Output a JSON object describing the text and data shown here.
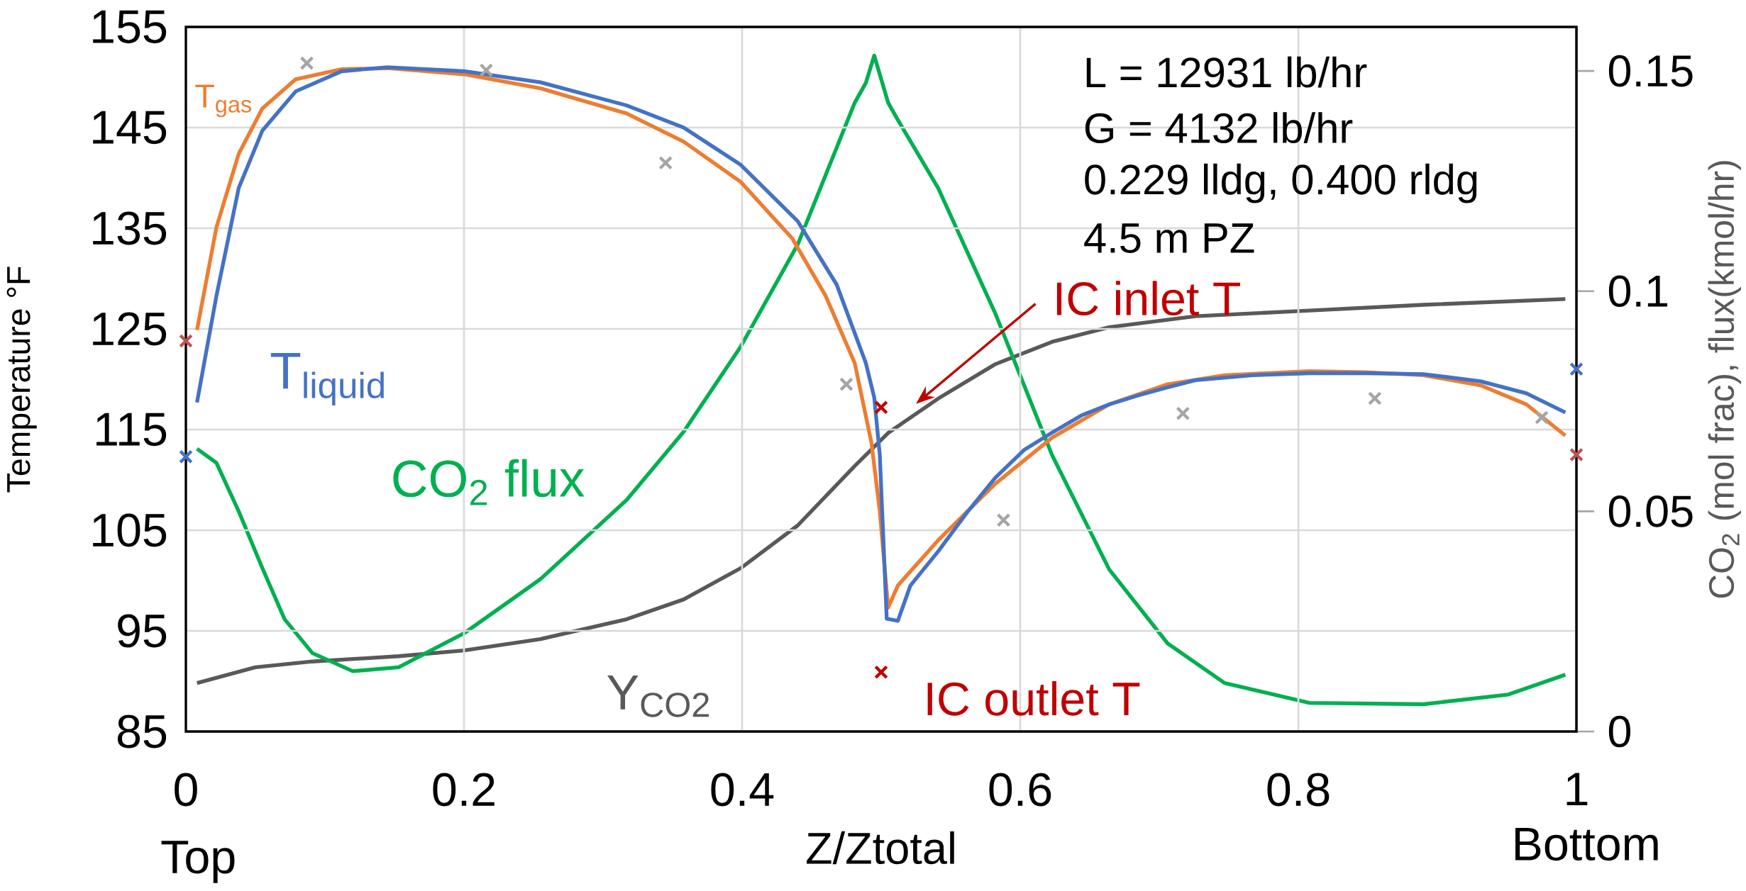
{
  "chart_data": {
    "type": "line",
    "xlabel": "Z/Ztotal",
    "ylabel": "Temperature °F",
    "y2label": "CO$_{2}$ (mol frac), flux(kmol/hr)",
    "xlim": [
      0,
      1
    ],
    "xticks": [
      0,
      0.2,
      0.4,
      0.6,
      0.8,
      1
    ],
    "ylim": [
      85,
      155
    ],
    "yticks": [
      85,
      95,
      105,
      115,
      125,
      135,
      145,
      155
    ],
    "y2lim": [
      0,
      0.16
    ],
    "y2ticks": [
      0,
      0.05,
      0.1,
      0.15
    ],
    "grid": true,
    "marker": "none",
    "series": [
      {
        "name": "T$_{gas}$",
        "color": "#ed7d31",
        "x": [
          0.008,
          0.022,
          0.038,
          0.055,
          0.079,
          0.112,
          0.145,
          0.2,
          0.255,
          0.317,
          0.358,
          0.399,
          0.436,
          0.46,
          0.481,
          0.493,
          0.499,
          0.505,
          0.512,
          0.541,
          0.582,
          0.623,
          0.664,
          0.706,
          0.747,
          0.808,
          0.849,
          0.89,
          0.931,
          0.964,
          0.992
        ],
        "values": [
          124.9,
          135.1,
          142.4,
          146.9,
          149.8,
          150.8,
          150.9,
          150.3,
          148.9,
          146.4,
          143.6,
          139.6,
          134.0,
          128.3,
          121.6,
          113.7,
          106.9,
          97.3,
          99.5,
          104.0,
          109.6,
          114.2,
          117.5,
          119.5,
          120.4,
          120.8,
          120.7,
          120.4,
          119.4,
          117.5,
          114.4
        ]
      },
      {
        "name": "T$_{liquid}$",
        "color": "#4472c4",
        "x": [
          0.008,
          0.022,
          0.038,
          0.055,
          0.079,
          0.112,
          0.145,
          0.2,
          0.255,
          0.317,
          0.358,
          0.399,
          0.44,
          0.468,
          0.489,
          0.495,
          0.499,
          0.504,
          0.512,
          0.521,
          0.541,
          0.562,
          0.582,
          0.603,
          0.623,
          0.644,
          0.664,
          0.685,
          0.706,
          0.726,
          0.767,
          0.808,
          0.849,
          0.89,
          0.931,
          0.964,
          0.992
        ],
        "values": [
          117.7,
          128.3,
          139.0,
          144.7,
          148.6,
          150.6,
          151.0,
          150.6,
          149.5,
          147.2,
          145.0,
          141.3,
          135.7,
          129.4,
          121.6,
          118.2,
          112.5,
          96.2,
          96.0,
          99.5,
          102.9,
          106.8,
          110.2,
          113.0,
          114.7,
          116.4,
          117.5,
          118.4,
          119.2,
          119.9,
          120.4,
          120.6,
          120.6,
          120.5,
          119.8,
          118.6,
          116.7
        ]
      },
      {
        "name": "Y$_{CO2}$",
        "color": "#595959",
        "axis": "y2",
        "x": [
          0.008,
          0.05,
          0.091,
          0.153,
          0.2,
          0.255,
          0.317,
          0.358,
          0.399,
          0.44,
          0.481,
          0.505,
          0.541,
          0.582,
          0.623,
          0.664,
          0.726,
          0.808,
          0.89,
          0.992
        ],
        "values": [
          0.011,
          0.0146,
          0.0159,
          0.0171,
          0.0184,
          0.021,
          0.0255,
          0.03,
          0.0371,
          0.0468,
          0.0603,
          0.0678,
          0.0756,
          0.0834,
          0.0885,
          0.0918,
          0.0943,
          0.0956,
          0.0969,
          0.0982
        ]
      },
      {
        "name": "CO$_{2}$ flux",
        "color": "#00b050",
        "axis": "y2",
        "x": [
          0.008,
          0.022,
          0.038,
          0.055,
          0.071,
          0.091,
          0.12,
          0.153,
          0.2,
          0.255,
          0.317,
          0.358,
          0.399,
          0.44,
          0.481,
          0.489,
          0.495,
          0.505,
          0.512,
          0.541,
          0.582,
          0.623,
          0.664,
          0.706,
          0.747,
          0.808,
          0.89,
          0.951,
          0.992
        ],
        "values": [
          0.0642,
          0.061,
          0.05,
          0.0371,
          0.0255,
          0.0178,
          0.0137,
          0.0146,
          0.0223,
          0.0346,
          0.0526,
          0.0681,
          0.0874,
          0.1106,
          0.1428,
          0.1473,
          0.1535,
          0.1428,
          0.1389,
          0.1234,
          0.095,
          0.0627,
          0.0368,
          0.02,
          0.011,
          0.0065,
          0.0062,
          0.0084,
          0.0129
        ]
      },
      {
        "type": "scatter",
        "marker": "cross",
        "color": "#a5a5a5",
        "x": [
          0.087,
          0.216,
          0.345,
          0.475,
          0.588,
          0.717,
          0.855,
          0.975
        ],
        "values": [
          151.4,
          150.7,
          141.5,
          119.5,
          106.0,
          116.6,
          118.1,
          116.2
        ]
      },
      {
        "type": "scatter",
        "marker": "cross",
        "color": "#c00000",
        "x": [
          0.5,
          0.5
        ],
        "values": [
          117.2,
          90.9
        ]
      },
      {
        "type": "scatter",
        "marker": "cross",
        "color": "#c0504d",
        "x": [
          0,
          1
        ],
        "values": [
          123.8,
          112.5
        ]
      },
      {
        "type": "scatter",
        "marker": "cross",
        "color": "#4472c4",
        "x": [
          0,
          1
        ],
        "values": [
          112.3,
          121.0
        ]
      }
    ],
    "annotations": [
      "L = 12931 lb/hr",
      "G = 4132 lb/hr",
      "0.229 lldg, 0.400 rldg",
      "4.5 m PZ",
      "IC inlet T",
      "IC outlet T",
      "Top",
      "Bottom"
    ]
  }
}
